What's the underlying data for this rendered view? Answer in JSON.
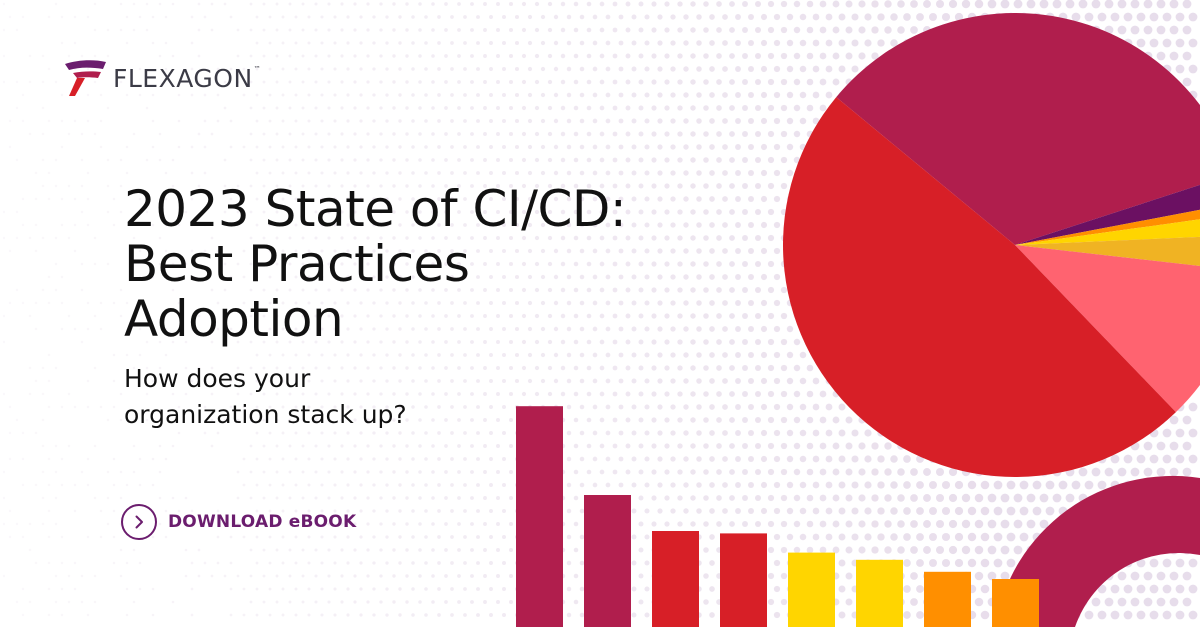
{
  "brand": {
    "name": "FLEXAGON",
    "trademark": "™",
    "colors": {
      "primary": "#6b1d6e",
      "crimson": "#b01e4d",
      "red": "#d71f27",
      "coral": "#ff6370",
      "yellow": "#ffd500",
      "amber": "#f0b323",
      "orange": "#ff8f00",
      "purple": "#6b1062"
    }
  },
  "headline": {
    "line1": "2023 State of CI/CD:",
    "line2": "Best Practices",
    "line3": "Adoption"
  },
  "subheadline": {
    "line1": "How does your",
    "line2": "organization stack up?"
  },
  "cta": {
    "label": "DOWNLOAD eBOOK",
    "icon": "chevron-right-icon"
  },
  "decor": {
    "bar_levels": [
      0.92,
      0.55,
      0.4,
      0.39,
      0.31,
      0.28,
      0.23,
      0.2
    ],
    "bar_colors": [
      "#b01e4d",
      "#b01e4d",
      "#d71f27",
      "#d71f27",
      "#ffd500",
      "#ffd500",
      "#ff8f00",
      "#ff8f00"
    ],
    "pie_slices": [
      {
        "color": "#b01e4d",
        "share": 0.34
      },
      {
        "color": "#6b1062",
        "share": 0.02
      },
      {
        "color": "#ff8f00",
        "share": 0.008
      },
      {
        "color": "#ffd500",
        "share": 0.015
      },
      {
        "color": "#f0b323",
        "share": 0.025
      },
      {
        "color": "#ff6370",
        "share": 0.11
      },
      {
        "color": "#d71f27",
        "share": 0.482
      }
    ]
  }
}
